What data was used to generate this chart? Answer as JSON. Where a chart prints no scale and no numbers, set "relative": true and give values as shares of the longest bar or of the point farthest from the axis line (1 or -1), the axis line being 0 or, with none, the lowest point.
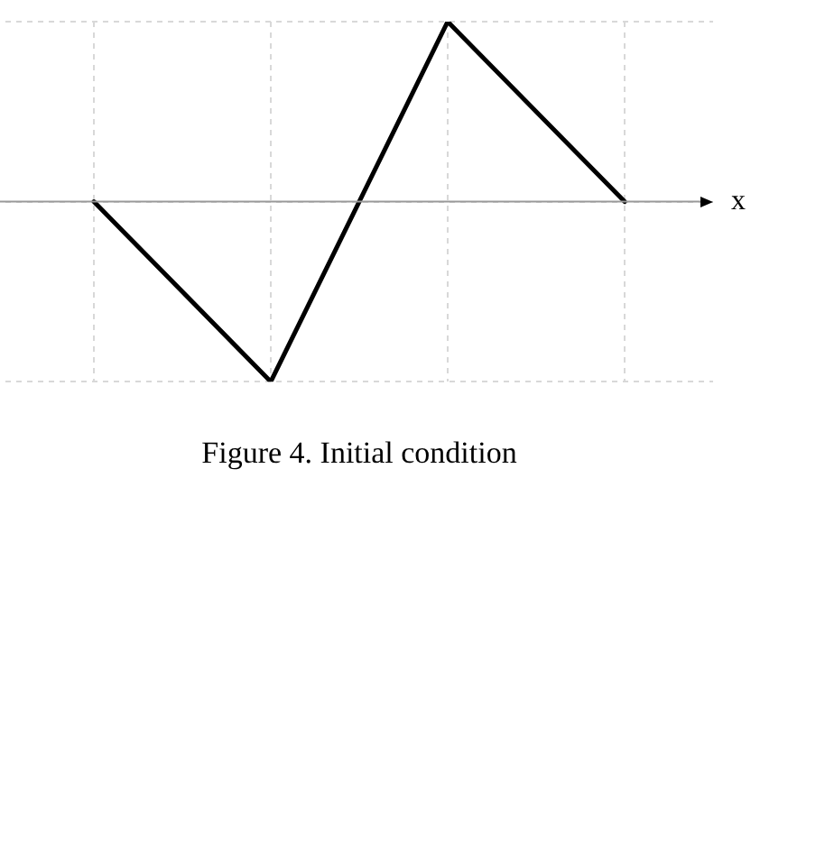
{
  "chart_data": {
    "type": "line",
    "title": "Figure 4. Initial condition",
    "xlabel": "x",
    "relative": true,
    "categories": [
      null,
      null,
      null,
      null
    ],
    "series": [
      {
        "color": "#000000",
        "values": [
          0,
          -1,
          1,
          0
        ]
      }
    ],
    "grid": true,
    "marker": "none",
    "line_style": "solid",
    "legend": false
  }
}
